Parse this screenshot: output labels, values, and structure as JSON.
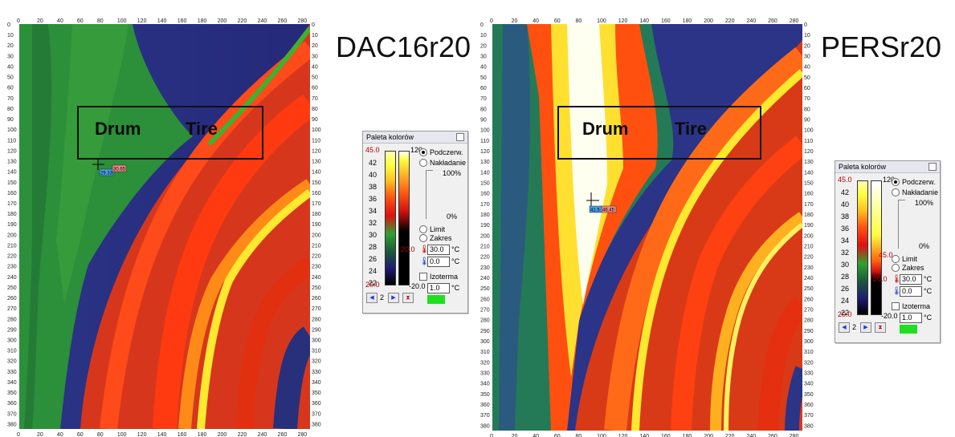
{
  "left": {
    "title": "DAC16r20",
    "roi_labels": [
      "Drum",
      "Tire"
    ],
    "marker": {
      "cold_value": "29.33",
      "hot_value": "30.65"
    },
    "palette": {
      "header": "Paleta kolorów",
      "max": "45.0",
      "min": "20.0",
      "scale_labels": [
        "42",
        "40",
        "38",
        "36",
        "34",
        "32",
        "30",
        "28",
        "26",
        "24",
        "22"
      ],
      "range_top": "120",
      "range_bottom": "-20.0",
      "marker_value": "20.0",
      "opt_thermal": "Podczerw.",
      "opt_overlay": "Nakładanie",
      "slider_top": "100%",
      "slider_bottom": "0%",
      "opt_limit": "Limit",
      "opt_range": "Zakres",
      "hot_value": "30.0",
      "cold_value": "0.0",
      "unit": "°C",
      "isotherm_label": "Izoterma",
      "isotherm_value": "1.0",
      "page": "2"
    }
  },
  "right": {
    "title": "PERSr20",
    "roi_labels": [
      "Drum",
      "Tire"
    ],
    "marker": {
      "cold_value": "41.5",
      "hot_value": "46.45"
    },
    "palette": {
      "header": "Paleta kolorów",
      "max": "45.0",
      "min": "20.0",
      "scale_labels": [
        "42",
        "40",
        "38",
        "36",
        "34",
        "32",
        "30",
        "28",
        "26",
        "24",
        "22"
      ],
      "range_top": "120",
      "range_bottom": "-20.0",
      "marker_value": "20.0",
      "marker_value2": "45.0",
      "opt_thermal": "Podczerw.",
      "opt_overlay": "Nakładanie",
      "slider_top": "100%",
      "slider_bottom": "0%",
      "opt_limit": "Limit",
      "opt_range": "Zakres",
      "hot_value": "30.0",
      "cold_value": "0.0",
      "unit": "°C",
      "isotherm_label": "Izoterma",
      "isotherm_value": "1.0",
      "page": "2"
    }
  },
  "axes": {
    "x_ticks": [
      "0",
      "20",
      "40",
      "60",
      "80",
      "100",
      "120",
      "140",
      "160",
      "180",
      "200",
      "220",
      "240",
      "260",
      "280"
    ],
    "y_ticks": [
      "0",
      "10",
      "20",
      "30",
      "40",
      "50",
      "60",
      "70",
      "80",
      "90",
      "100",
      "110",
      "120",
      "130",
      "140",
      "150",
      "160",
      "170",
      "180",
      "190",
      "200",
      "210",
      "220",
      "230",
      "240",
      "250",
      "260",
      "270",
      "280",
      "290",
      "300",
      "310",
      "320",
      "330",
      "340",
      "350",
      "360",
      "370",
      "380"
    ]
  },
  "colors": {
    "background_dark": "#2a2f7a",
    "green": "#27a52a",
    "red": "#ff2a00",
    "yellow": "#ffff40",
    "swatch": "#1fe01f"
  }
}
